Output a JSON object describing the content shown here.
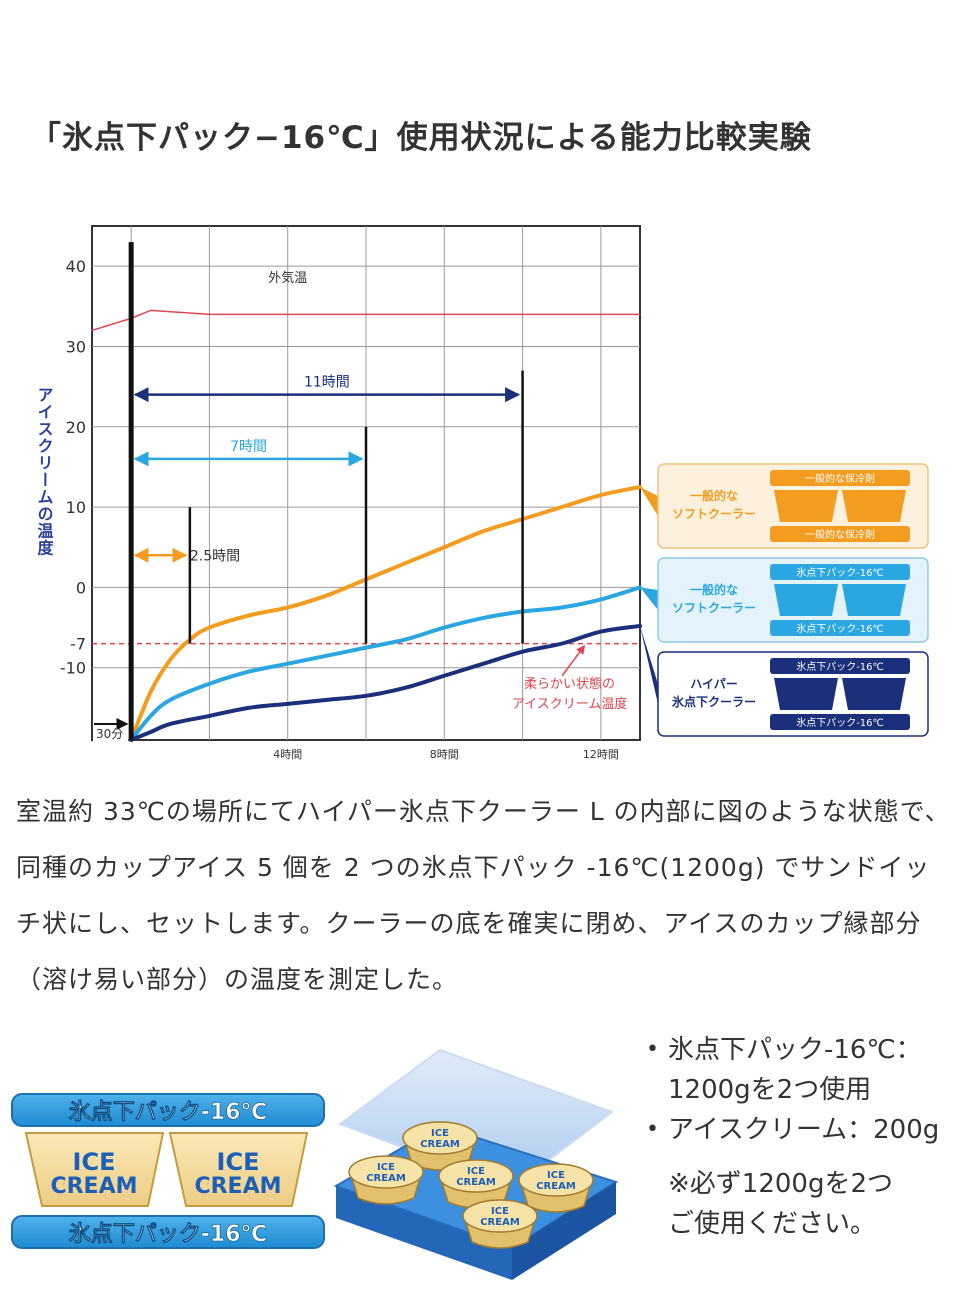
{
  "title": "「氷点下パック−16℃」使用状況による能力比較実験",
  "chart_data": {
    "type": "line",
    "title": "",
    "xlabel": "",
    "ylabel": "アイスクリームの温度",
    "xlim": [
      -1,
      13
    ],
    "ylim": [
      -19,
      45
    ],
    "yticks": [
      40,
      30,
      20,
      10,
      0,
      -10
    ],
    "yticks_extra": [
      -7
    ],
    "xticks": [
      {
        "x": 4,
        "label": "4時間"
      },
      {
        "x": 8,
        "label": "8時間"
      },
      {
        "x": 12,
        "label": "12時間"
      }
    ],
    "start_label": "30分",
    "series": [
      {
        "name": "外気温",
        "color": "#e0464f",
        "x": [
          -1,
          0,
          0.5,
          2,
          13
        ],
        "y": [
          32,
          33.5,
          34.5,
          34,
          34
        ]
      },
      {
        "name": "一般的なソフトクーラー（一般的な保冷剤）",
        "color": "#f39c1f",
        "x": [
          0,
          0.5,
          1,
          1.5,
          2,
          3,
          4,
          5,
          6,
          7,
          8,
          9,
          10,
          11,
          12,
          13
        ],
        "y": [
          -19,
          -13,
          -9,
          -6.5,
          -5,
          -3.5,
          -2.5,
          -1,
          1,
          3,
          5,
          7,
          8.5,
          10,
          11.5,
          12.5
        ]
      },
      {
        "name": "一般的なソフトクーラー（氷点下パック-16℃）",
        "color": "#2aa6e0",
        "x": [
          0,
          0.5,
          1,
          2,
          3,
          4,
          5,
          6,
          7,
          8,
          9,
          10,
          11,
          12,
          13
        ],
        "y": [
          -19,
          -16,
          -14,
          -12,
          -10.5,
          -9.5,
          -8.5,
          -7.5,
          -6.5,
          -5,
          -3.8,
          -3,
          -2.5,
          -1.5,
          0
        ]
      },
      {
        "name": "ハイパー氷点下クーラー（氷点下パック-16℃）",
        "color": "#1b2f7a",
        "x": [
          0,
          0.5,
          1,
          2,
          3,
          4,
          5,
          6,
          7,
          8,
          9,
          10,
          11,
          12,
          13
        ],
        "y": [
          -19,
          -18,
          -17,
          -16,
          -15,
          -14.5,
          -14,
          -13.5,
          -12.5,
          -11,
          -9.5,
          -8,
          -7,
          -5.5,
          -4.8
        ]
      }
    ],
    "reference_line": {
      "y": -7,
      "color": "#e0464f",
      "label": "柔らかい状態のアイスクリーム温度"
    },
    "annotations": [
      {
        "label": "外気温",
        "x": 4,
        "y": 38
      },
      {
        "label": "2.5時間",
        "from": 0,
        "to": 1.5,
        "y": 4,
        "color": "#f39c1f"
      },
      {
        "label": "7時間",
        "from": 0,
        "to": 6,
        "y": 16,
        "color": "#2aa6e0"
      },
      {
        "label": "11時間",
        "from": 0,
        "to": 10,
        "y": 24,
        "color": "#1b2f7a"
      }
    ],
    "markers": [
      {
        "x": 0,
        "top": 43
      },
      {
        "x": 1.5,
        "top": 10
      },
      {
        "x": 6,
        "top": 20
      },
      {
        "x": 10,
        "top": 27
      }
    ],
    "legend_placement": "right",
    "legend": [
      {
        "label_lines": [
          "一般的な",
          "ソフトクーラー"
        ],
        "pack_label": "一般的な保冷剤",
        "color": "#f39c1f",
        "bg": "#fdf0dd",
        "border": "#f2c27c"
      },
      {
        "label_lines": [
          "一般的な",
          "ソフトクーラー"
        ],
        "pack_label": "氷点下パック-16℃",
        "color": "#2aa6e0",
        "bg": "#e4f3fb",
        "border": "#8fcbe8"
      },
      {
        "label_lines": [
          "ハイパー",
          "氷点下クーラー"
        ],
        "pack_label": "氷点下パック-16℃",
        "color": "#1b2f7a",
        "bg": "#ffffff",
        "border": "#1b2f7a"
      }
    ]
  },
  "description": "室温約 33℃の場所にてハイパー氷点下クーラー L の内部に図のような状態で、同種のカップアイス 5 個を 2 つの氷点下パック -16℃(1200g) でサンドイッチ状にし、セットします。クーラーの底を確実に閉め、アイスのカップ縁部分（溶け易い部分）の温度を測定した。",
  "figure": {
    "pack_label": "氷点下パック-16℃",
    "cup_line1": "ICE",
    "cup_line2": "CREAM"
  },
  "notes": {
    "items": [
      {
        "lines": [
          "氷点下パック-16℃：",
          "1200gを2つ使用"
        ]
      },
      {
        "lines": [
          "アイスクリーム：200g"
        ]
      }
    ],
    "remark_lines": [
      "※必ず1200gを2つ",
      "ご使用ください。"
    ]
  }
}
